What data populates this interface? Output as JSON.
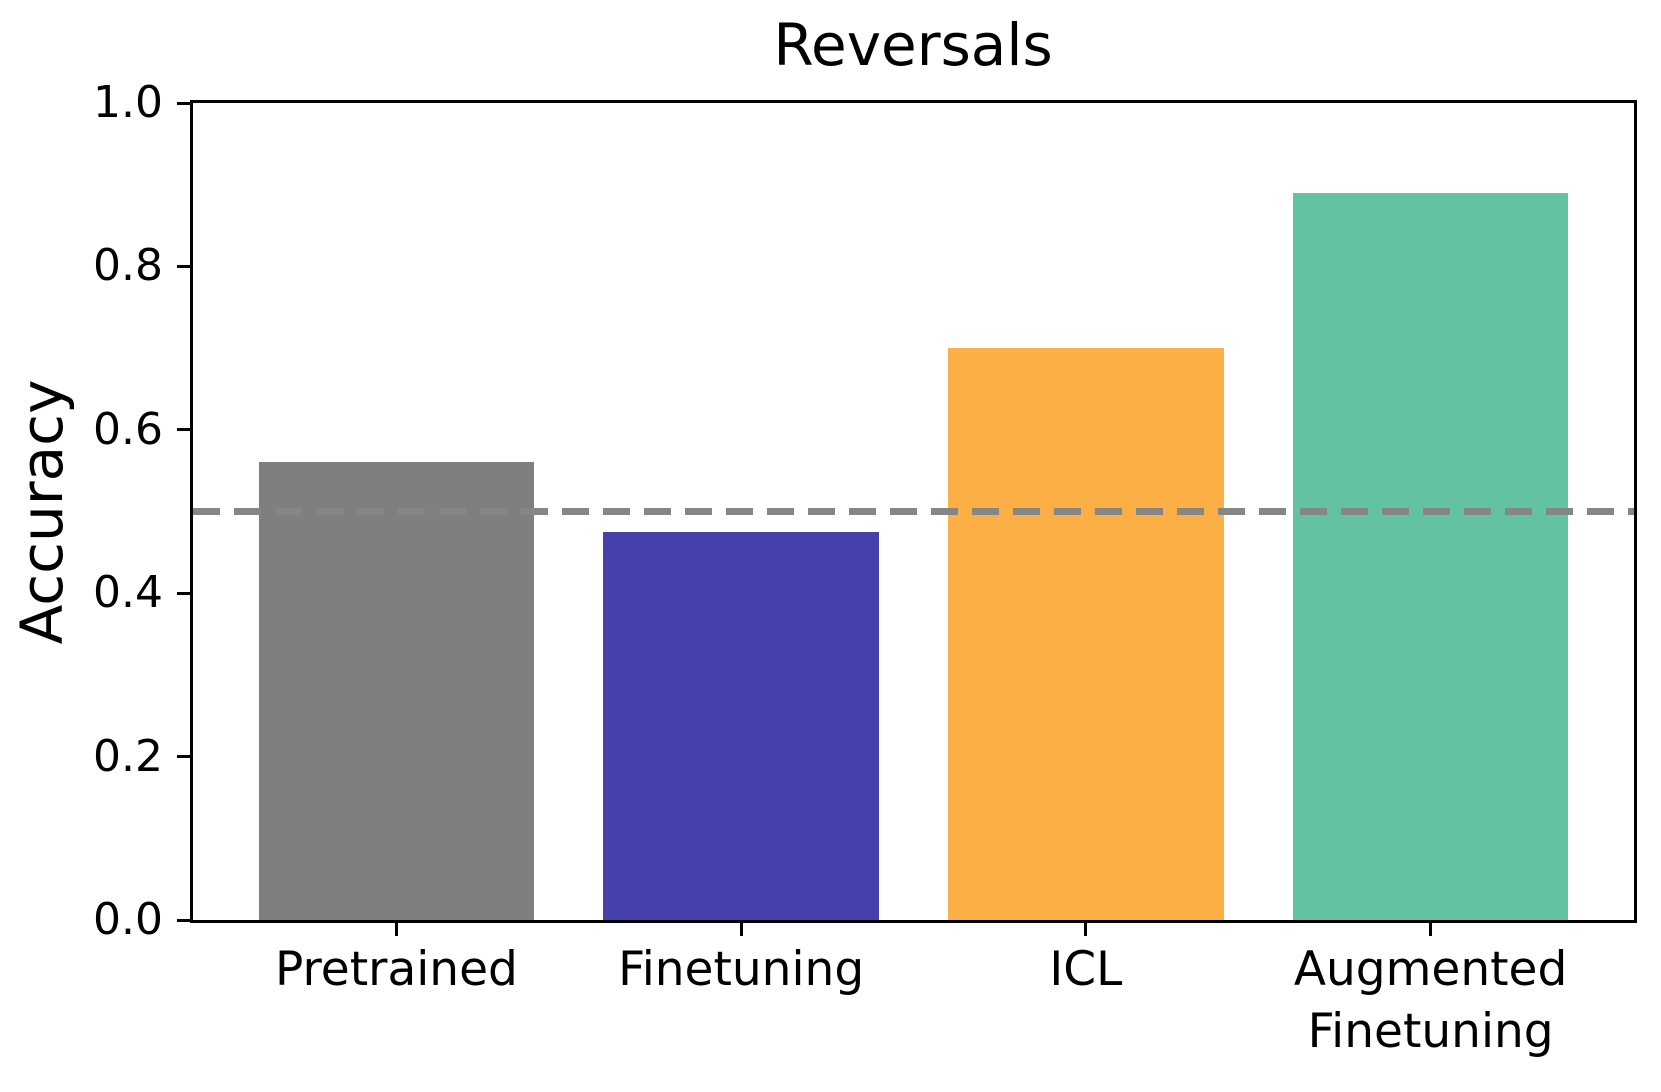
{
  "chart_data": {
    "type": "bar",
    "title": "Reversals",
    "ylabel": "Accuracy",
    "xlabel": "",
    "categories": [
      "Pretrained",
      "Finetuning",
      "ICL",
      "Augmented\nFinetuning"
    ],
    "values": [
      0.56,
      0.475,
      0.7,
      0.89
    ],
    "bar_colors": [
      "#7f7f7f",
      "#4540ac",
      "#fbaf45",
      "#62c2a2"
    ],
    "ylim": [
      0.0,
      1.0
    ],
    "yticks": [
      0.0,
      0.2,
      0.4,
      0.6,
      0.8,
      1.0
    ],
    "grid": false,
    "reference_line": {
      "value": 0.5,
      "style": "dashed",
      "color": "#868686"
    },
    "axis_color": "#000000",
    "background_color": "#ffffff"
  }
}
